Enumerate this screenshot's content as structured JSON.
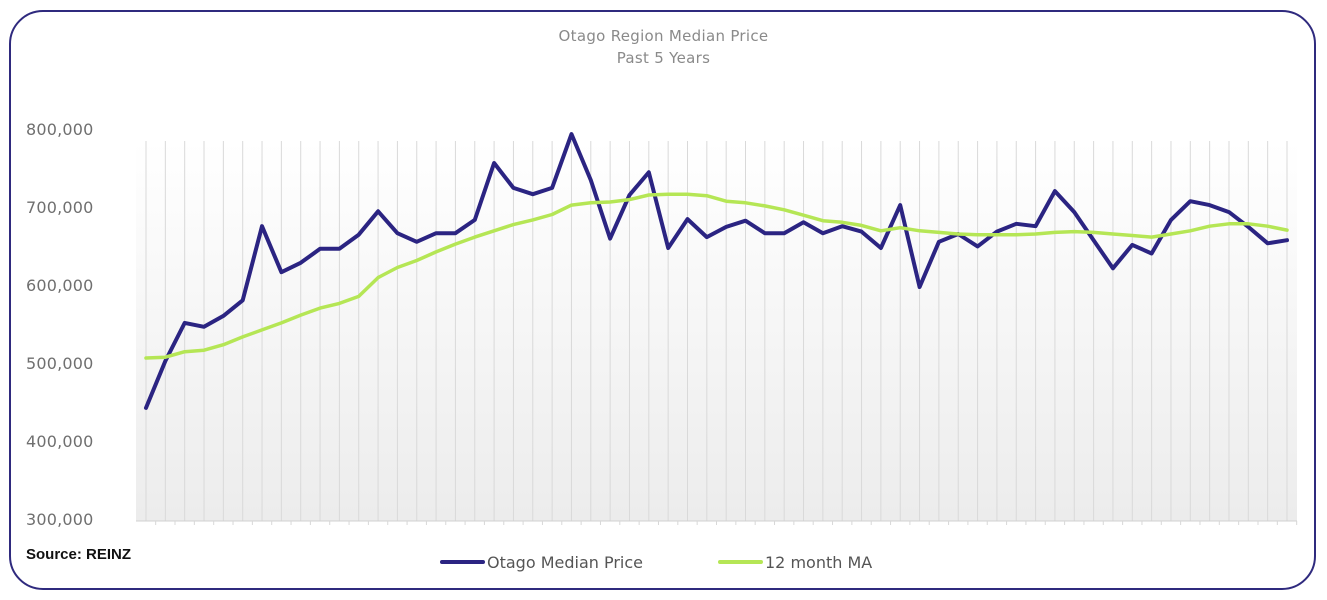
{
  "chart_data": {
    "type": "line",
    "title": "Otago Region Median Price",
    "subtitle": "Past 5 Years",
    "xlabel": "",
    "ylabel": "",
    "ylim": [
      300000,
      800000
    ],
    "yticks": [
      "800,000",
      "700,000",
      "600,000",
      "500,000",
      "400,000",
      "300,000"
    ],
    "ytick_values": [
      800000,
      700000,
      600000,
      500000,
      400000,
      300000
    ],
    "grid": "vertical lines at each month",
    "legend": "bottom-center",
    "x_count": 60,
    "series": [
      {
        "name": "Otago Median Price",
        "color": "#2b2482",
        "values": [
          445000,
          505000,
          554000,
          549000,
          563000,
          583000,
          678000,
          619000,
          631000,
          649000,
          649000,
          667000,
          697000,
          669000,
          658000,
          669000,
          669000,
          686000,
          759000,
          727000,
          719000,
          727000,
          796000,
          737000,
          662000,
          718000,
          747000,
          650000,
          687000,
          664000,
          677000,
          685000,
          669000,
          669000,
          683000,
          669000,
          678000,
          671000,
          650000,
          705000,
          600000,
          658000,
          668000,
          652000,
          671000,
          681000,
          678000,
          723000,
          696000,
          660000,
          624000,
          654000,
          643000,
          686000,
          710000,
          705000,
          696000,
          677000,
          656000,
          660000
        ]
      },
      {
        "name": "12 month MA",
        "color": "#b5e655",
        "values": [
          509000,
          510000,
          517000,
          519000,
          526000,
          536000,
          545000,
          554000,
          564000,
          573000,
          579000,
          588000,
          612000,
          625000,
          634000,
          645000,
          655000,
          664000,
          672000,
          680000,
          686000,
          693000,
          705000,
          708000,
          709000,
          712000,
          718000,
          719000,
          719000,
          717000,
          710000,
          708000,
          704000,
          699000,
          692000,
          685000,
          683000,
          679000,
          672000,
          676000,
          672000,
          670000,
          668000,
          667000,
          667000,
          667000,
          668000,
          670000,
          671000,
          670000,
          668000,
          666000,
          664000,
          668000,
          672000,
          678000,
          681000,
          681000,
          678000,
          673000
        ]
      }
    ]
  },
  "source": "Source: REINZ",
  "colors": {
    "frame": "#2f2a7e",
    "gridline": "#d9d9d9",
    "plot_bg_top": "#ffffff",
    "plot_bg_bottom": "#ededed"
  }
}
